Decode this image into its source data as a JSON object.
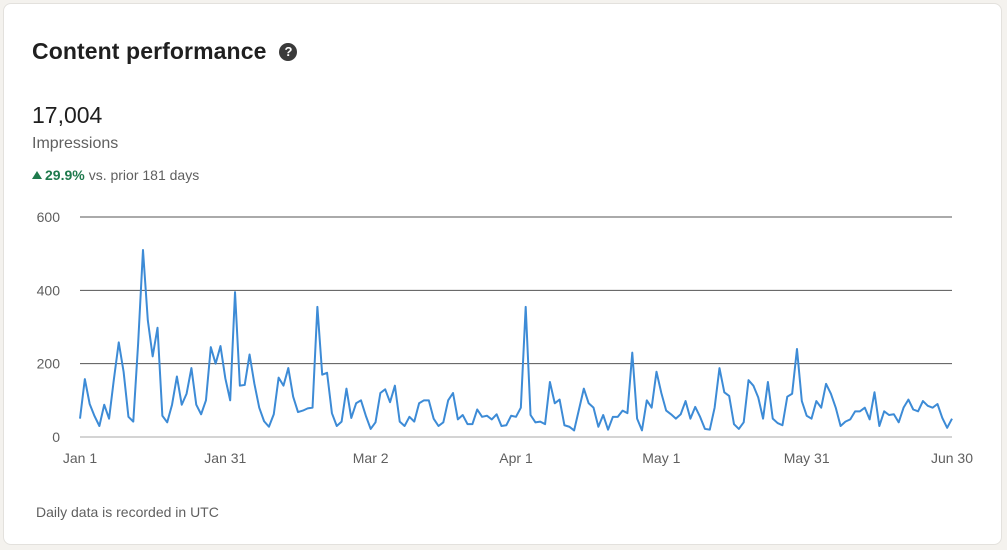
{
  "card": {
    "title": "Content performance",
    "help_icon": "question-circle-icon",
    "metric_value": "17,004",
    "metric_label": "Impressions",
    "delta_value": "29.9%",
    "delta_text": "vs. prior 181 days",
    "footnote": "Daily data is recorded in UTC"
  },
  "colors": {
    "line": "#3d8bd6",
    "positive": "#1f7a4d",
    "grid": "#555555"
  },
  "chart_data": {
    "type": "line",
    "title": "",
    "xlabel": "",
    "ylabel": "",
    "ylim": [
      0,
      600
    ],
    "y_ticks": [
      0,
      200,
      400,
      600
    ],
    "x_ticks": [
      "Jan 1",
      "Jan 31",
      "Mar 2",
      "Apr 1",
      "May 1",
      "May 31",
      "Jun 30"
    ],
    "x_range": [
      "Jan 1",
      "Jun 30"
    ],
    "grid": "horizontal",
    "series": [
      {
        "values": [
          50,
          158,
          90,
          57,
          30,
          88,
          50,
          158,
          258,
          178,
          55,
          42,
          255,
          510,
          318,
          220,
          298,
          58,
          40,
          88,
          165,
          88,
          118,
          188,
          88,
          62,
          100,
          245,
          200,
          248,
          160,
          100,
          395,
          140,
          142,
          225,
          145,
          80,
          43,
          28,
          62,
          162,
          140,
          188,
          110,
          68,
          72,
          78,
          80,
          355,
          170,
          175,
          65,
          30,
          42,
          132,
          52,
          92,
          100,
          58,
          22,
          40,
          120,
          130,
          95,
          140,
          42,
          30,
          55,
          42,
          92,
          100,
          100,
          50,
          30,
          40,
          100,
          120,
          48,
          60,
          35,
          35,
          75,
          55,
          58,
          48,
          62,
          30,
          32,
          58,
          55,
          80,
          355,
          60,
          40,
          42,
          35,
          150,
          92,
          102,
          32,
          28,
          18,
          75,
          132,
          92,
          80,
          28,
          60,
          20,
          55,
          55,
          72,
          65,
          230,
          50,
          18,
          100,
          80,
          178,
          120,
          72,
          62,
          50,
          62,
          98,
          50,
          82,
          55,
          22,
          20,
          80,
          188,
          122,
          112,
          35,
          22,
          40,
          155,
          140,
          108,
          50,
          150,
          50,
          38,
          32,
          110,
          118,
          240,
          98,
          58,
          50,
          98,
          80,
          145,
          118,
          80,
          30,
          42,
          48,
          70,
          70,
          80,
          48,
          122,
          30,
          70,
          60,
          62,
          40,
          80,
          102,
          75,
          70,
          98,
          85,
          80,
          90,
          52,
          25,
          50
        ]
      }
    ]
  }
}
